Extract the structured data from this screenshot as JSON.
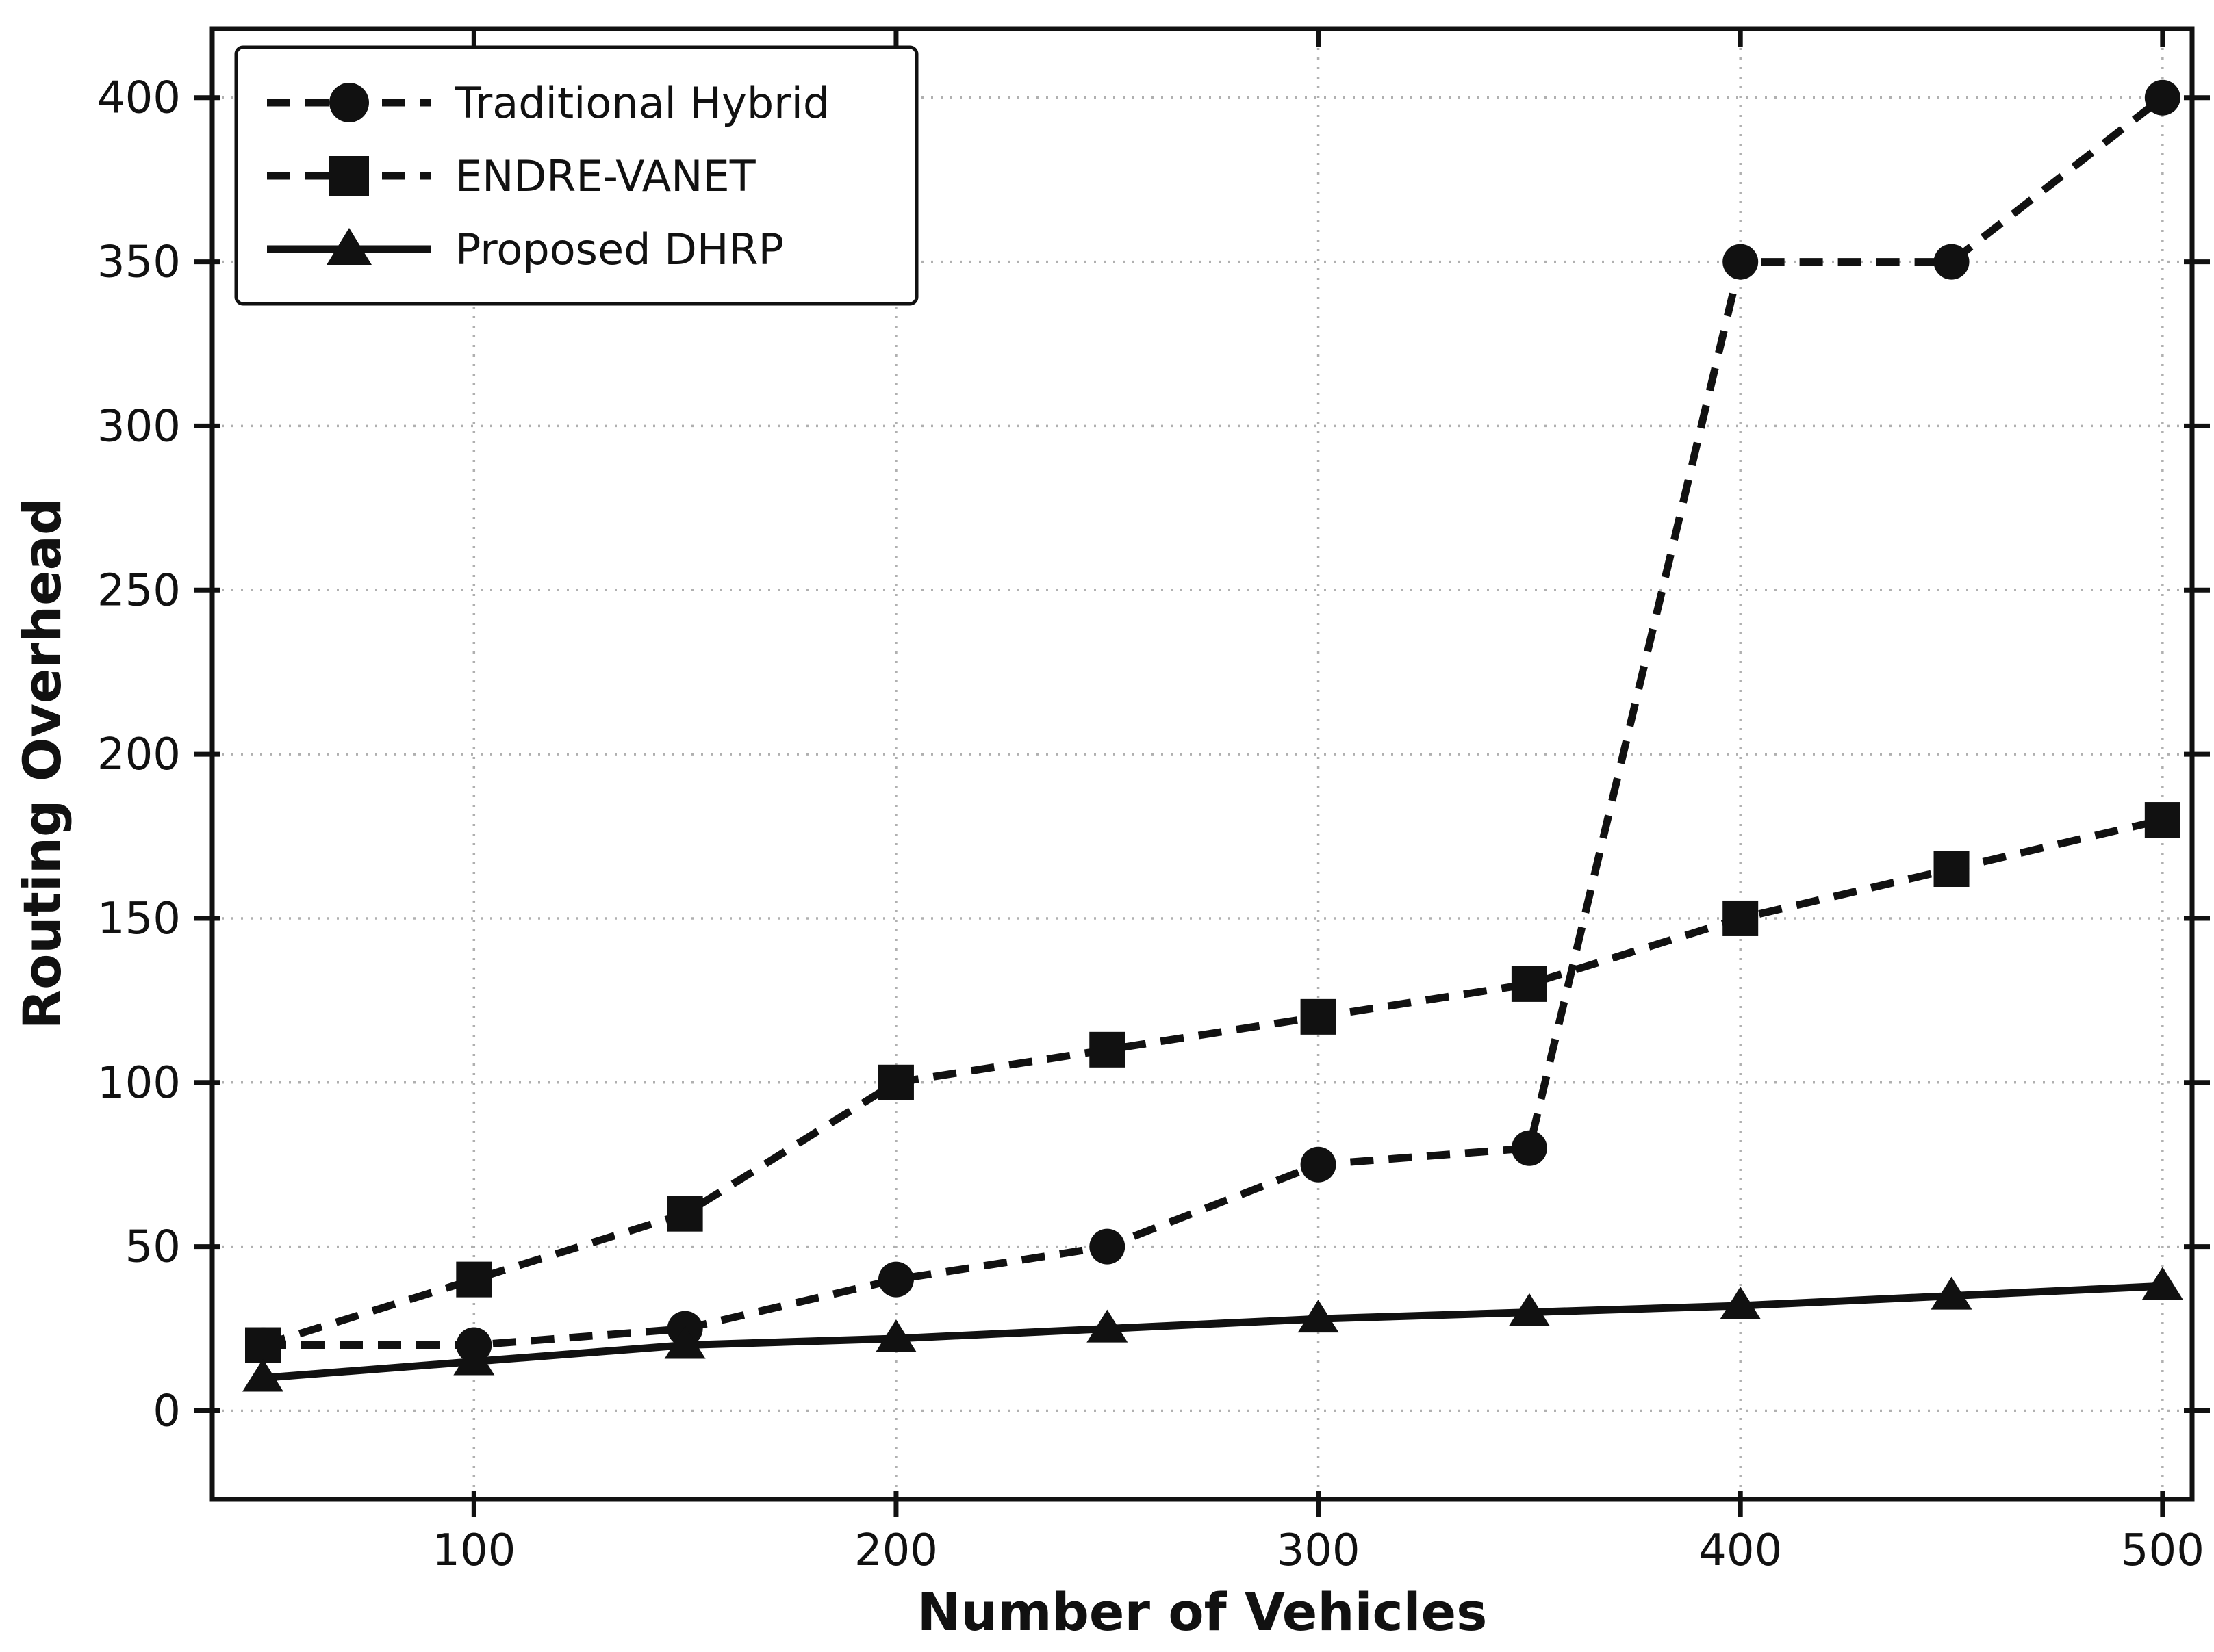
{
  "figure": {
    "background": "#ffffff",
    "line_color": "#111111",
    "grid_color": "#b0b0b0",
    "legend_border_color": "#111111",
    "legend_background": "#ffffff"
  },
  "chart_data": {
    "type": "line",
    "title": "",
    "xlabel": "Number of Vehicles",
    "ylabel": "Routing Overhead",
    "x": [
      50,
      100,
      150,
      200,
      250,
      300,
      350,
      400,
      450,
      500
    ],
    "series": [
      {
        "name": "Traditional Hybrid",
        "values": [
          20,
          20,
          25,
          40,
          50,
          75,
          80,
          350,
          350,
          400
        ],
        "marker": "circle",
        "line_style": "dashed",
        "color": "#111111"
      },
      {
        "name": "ENDRE-VANET",
        "values": [
          20,
          40,
          60,
          100,
          110,
          120,
          130,
          150,
          165,
          180
        ],
        "marker": "square",
        "line_style": "dashed",
        "color": "#111111"
      },
      {
        "name": "Proposed DHRP",
        "values": [
          10,
          15,
          20,
          22,
          25,
          28,
          30,
          32,
          35,
          38
        ],
        "marker": "triangle",
        "line_style": "solid",
        "color": "#111111"
      }
    ],
    "xticks": [
      100,
      200,
      300,
      400,
      500
    ],
    "yticks": [
      0,
      50,
      100,
      150,
      200,
      250,
      300,
      350,
      400
    ],
    "xlim": [
      38,
      507
    ],
    "ylim": [
      -27,
      421
    ],
    "grid": "dotted",
    "legend_position": "upper-left"
  }
}
